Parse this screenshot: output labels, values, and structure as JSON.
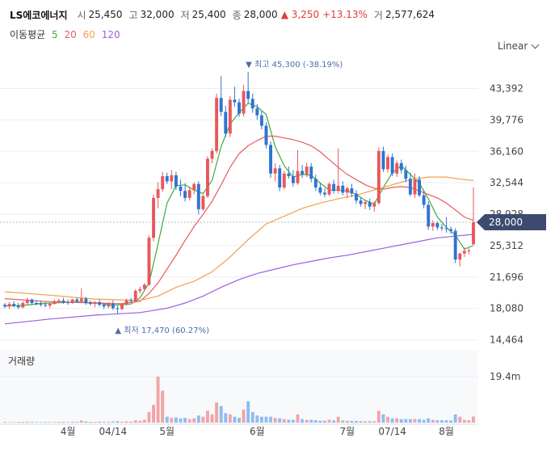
{
  "header": {
    "name": "LS에코에너지",
    "open_label": "시",
    "open": "25,450",
    "high_label": "고",
    "high": "32,000",
    "low_label": "저",
    "low": "25,400",
    "close_label": "종",
    "close": "28,000",
    "change": "▲ 3,250",
    "change_pct": "+13.13%",
    "volume_label": "거",
    "volume": "2,577,624"
  },
  "ma": {
    "label": "이동평균",
    "items": [
      {
        "period": "5",
        "color": "#3cab3c"
      },
      {
        "period": "20",
        "color": "#e85b5b"
      },
      {
        "period": "60",
        "color": "#f0a04a"
      },
      {
        "period": "120",
        "color": "#9b5fe0"
      }
    ]
  },
  "scale_selector": {
    "value": "Linear"
  },
  "volume_panel": {
    "title": "거래량",
    "tick": "19.4m"
  },
  "colors": {
    "up": "#e8575c",
    "down": "#2f74d0",
    "vol_up": "#f2a4a8",
    "vol_down": "#8dbdf0",
    "price_tag": "#3c4a70"
  },
  "chart_data": {
    "type": "candlestick",
    "y_ticks": [
      "43,392",
      "39,776",
      "36,160",
      "32,544",
      "28,928",
      "25,312",
      "21,696",
      "18,080",
      "14,464"
    ],
    "y_tick_values": [
      43392,
      39776,
      36160,
      32544,
      28928,
      25312,
      21696,
      18080,
      14464
    ],
    "ylim": [
      14464,
      43392
    ],
    "x_tick_labels": [
      "4월",
      "04/14",
      "5월",
      "6월",
      "7월",
      "07/14",
      "8월"
    ],
    "x_tick_index": [
      14,
      24,
      36,
      56,
      76,
      86,
      98
    ],
    "last_price_label": "28,000",
    "last_price": 28000,
    "high_annotation": "최고 45,300 (-38.19%)",
    "high_value": 45300,
    "high_index": 54,
    "low_annotation": "최저 17,470 (60.27%)",
    "low_value": 17470,
    "low_index": 25,
    "candles": [
      [
        18500,
        18700,
        18100,
        18300
      ],
      [
        18300,
        18800,
        18000,
        18600
      ],
      [
        18600,
        18900,
        18200,
        18400
      ],
      [
        18400,
        18700,
        18000,
        18200
      ],
      [
        18200,
        18900,
        18100,
        18700
      ],
      [
        18700,
        19300,
        18500,
        19100
      ],
      [
        19100,
        19200,
        18500,
        18700
      ],
      [
        18700,
        19000,
        18400,
        18600
      ],
      [
        18600,
        18900,
        18300,
        18500
      ],
      [
        18500,
        18800,
        18200,
        18400
      ],
      [
        18400,
        18700,
        18100,
        18600
      ],
      [
        18600,
        19100,
        18500,
        18900
      ],
      [
        18900,
        19200,
        18700,
        19000
      ],
      [
        19000,
        19300,
        18600,
        18800
      ],
      [
        18800,
        19100,
        18500,
        18700
      ],
      [
        18700,
        19200,
        18600,
        19100
      ],
      [
        19100,
        19300,
        18700,
        18900
      ],
      [
        18900,
        20400,
        18700,
        19200
      ],
      [
        19200,
        19400,
        18500,
        18700
      ],
      [
        18700,
        19000,
        18400,
        18600
      ],
      [
        18600,
        18900,
        18200,
        18800
      ],
      [
        18800,
        19100,
        18300,
        18500
      ],
      [
        18500,
        18700,
        18000,
        18300
      ],
      [
        18300,
        18800,
        18100,
        18600
      ],
      [
        18600,
        19000,
        17900,
        18100
      ],
      [
        18100,
        18400,
        17470,
        18000
      ],
      [
        18000,
        18700,
        17900,
        18600
      ],
      [
        18600,
        19200,
        18400,
        19000
      ],
      [
        19000,
        19300,
        18700,
        18900
      ],
      [
        18900,
        20300,
        18800,
        20100
      ],
      [
        20100,
        20600,
        19800,
        20300
      ],
      [
        20300,
        21000,
        20100,
        20800
      ],
      [
        20800,
        26500,
        20700,
        26200
      ],
      [
        26200,
        31200,
        25800,
        30800
      ],
      [
        30800,
        32600,
        29600,
        31800
      ],
      [
        31800,
        33800,
        31500,
        33300
      ],
      [
        33300,
        33700,
        32400,
        32700
      ],
      [
        32700,
        34000,
        31800,
        33400
      ],
      [
        33400,
        33800,
        31700,
        32100
      ],
      [
        32100,
        32900,
        31000,
        31600
      ],
      [
        31600,
        32500,
        30400,
        30800
      ],
      [
        30800,
        32100,
        30500,
        31700
      ],
      [
        31700,
        32600,
        31200,
        32400
      ],
      [
        32400,
        32700,
        28900,
        29500
      ],
      [
        29500,
        31200,
        29300,
        31000
      ],
      [
        31000,
        35600,
        30800,
        35300
      ],
      [
        35300,
        36500,
        34800,
        36200
      ],
      [
        36200,
        42800,
        35900,
        42300
      ],
      [
        42300,
        44800,
        40200,
        40700
      ],
      [
        40700,
        41400,
        37800,
        38200
      ],
      [
        38200,
        42500,
        37800,
        42100
      ],
      [
        42100,
        43600,
        41300,
        41800
      ],
      [
        41800,
        42200,
        40100,
        40500
      ],
      [
        40500,
        43800,
        40200,
        43100
      ],
      [
        43100,
        45300,
        41700,
        42200
      ],
      [
        42200,
        42800,
        40600,
        41100
      ],
      [
        41100,
        41600,
        39800,
        40300
      ],
      [
        40300,
        40800,
        38700,
        39100
      ],
      [
        39100,
        39500,
        36500,
        36900
      ],
      [
        36900,
        37300,
        33100,
        33600
      ],
      [
        33600,
        34800,
        32700,
        34200
      ],
      [
        34200,
        34600,
        31600,
        32000
      ],
      [
        32000,
        33900,
        31800,
        33600
      ],
      [
        33600,
        34400,
        33000,
        33300
      ],
      [
        33300,
        34000,
        32100,
        32500
      ],
      [
        32500,
        36300,
        32300,
        33900
      ],
      [
        33900,
        34600,
        33100,
        33500
      ],
      [
        33500,
        34800,
        33200,
        34400
      ],
      [
        34400,
        34800,
        32600,
        33000
      ],
      [
        33000,
        33500,
        31600,
        32000
      ],
      [
        32000,
        32500,
        31100,
        31400
      ],
      [
        31400,
        31900,
        30900,
        31200
      ],
      [
        31200,
        32600,
        31000,
        32400
      ],
      [
        32400,
        32900,
        31300,
        31600
      ],
      [
        31600,
        36500,
        31300,
        32200
      ],
      [
        32200,
        32700,
        31100,
        31400
      ],
      [
        31400,
        32100,
        30800,
        31900
      ],
      [
        31900,
        32400,
        30900,
        31300
      ],
      [
        31300,
        31700,
        30100,
        30500
      ],
      [
        30500,
        30900,
        29800,
        30100
      ],
      [
        30100,
        30600,
        29500,
        30300
      ],
      [
        30300,
        30700,
        29400,
        29800
      ],
      [
        29800,
        30400,
        29200,
        30200
      ],
      [
        30200,
        36600,
        30000,
        36200
      ],
      [
        36200,
        36700,
        33800,
        34100
      ],
      [
        34100,
        35800,
        33700,
        35500
      ],
      [
        35500,
        35900,
        33300,
        33600
      ],
      [
        33600,
        35100,
        33200,
        34800
      ],
      [
        34800,
        35200,
        33600,
        34000
      ],
      [
        34000,
        34500,
        32600,
        33000
      ],
      [
        33000,
        33700,
        31000,
        31200
      ],
      [
        31200,
        33600,
        30800,
        32900
      ],
      [
        32900,
        33300,
        30900,
        31100
      ],
      [
        31100,
        31600,
        29600,
        30000
      ],
      [
        30000,
        30400,
        27100,
        27500
      ],
      [
        27500,
        28200,
        27000,
        27900
      ],
      [
        27900,
        28100,
        27100,
        27400
      ],
      [
        27400,
        27800,
        27000,
        27300
      ],
      [
        27300,
        28600,
        26800,
        27200
      ],
      [
        27200,
        27500,
        26700,
        27000
      ],
      [
        27000,
        27300,
        23300,
        23700
      ],
      [
        23700,
        24500,
        22900,
        24400
      ],
      [
        24400,
        25100,
        24000,
        24700
      ],
      [
        24700,
        25000,
        24300,
        24750
      ],
      [
        25450,
        32000,
        25400,
        28000
      ]
    ],
    "volume_ylim": [
      0,
      30000000
    ],
    "volume_tick_value": 19400000,
    "volumes": [
      300000,
      250000,
      200000,
      300000,
      350000,
      400000,
      300000,
      250000,
      200000,
      300000,
      250000,
      300000,
      350000,
      300000,
      250000,
      400000,
      350000,
      900000,
      500000,
      300000,
      300000,
      400000,
      350000,
      300000,
      500000,
      600000,
      400000,
      500000,
      400000,
      1000000,
      800000,
      1200000,
      4500000,
      7500000,
      19400000,
      13500000,
      2500000,
      2000000,
      2200000,
      1800000,
      2000000,
      1500000,
      1800000,
      3000000,
      2500000,
      5000000,
      3500000,
      8500000,
      7000000,
      4000000,
      3500000,
      2500000,
      2000000,
      5500000,
      9000000,
      4500000,
      3000000,
      2500000,
      2500000,
      2500000,
      2000000,
      1800000,
      1500000,
      1200000,
      1200000,
      3500000,
      1500000,
      1200000,
      1200000,
      1000000,
      800000,
      800000,
      1200000,
      900000,
      2500000,
      900000,
      800000,
      700000,
      700000,
      600000,
      600000,
      600000,
      600000,
      5000000,
      3500000,
      2500000,
      1800000,
      1800000,
      1500000,
      1500000,
      1500000,
      1500000,
      1500000,
      1200000,
      1800000,
      1200000,
      1000000,
      1000000,
      1000000,
      900000,
      3500000,
      2500000,
      1200000,
      1000000,
      2577624
    ],
    "ma_series": [
      {
        "name": "5",
        "color": "#3cab3c",
        "values": [
          [
            0,
            18350
          ],
          [
            4,
            18420
          ],
          [
            8,
            18650
          ],
          [
            12,
            18720
          ],
          [
            16,
            18830
          ],
          [
            20,
            18720
          ],
          [
            24,
            18450
          ],
          [
            28,
            18580
          ],
          [
            30,
            19300
          ],
          [
            32,
            21000
          ],
          [
            34,
            25500
          ],
          [
            36,
            30200
          ],
          [
            38,
            32200
          ],
          [
            40,
            32300
          ],
          [
            42,
            31700
          ],
          [
            44,
            31300
          ],
          [
            46,
            32800
          ],
          [
            48,
            36700
          ],
          [
            50,
            39300
          ],
          [
            52,
            40600
          ],
          [
            54,
            41700
          ],
          [
            56,
            41300
          ],
          [
            58,
            40400
          ],
          [
            60,
            36700
          ],
          [
            62,
            34500
          ],
          [
            64,
            33200
          ],
          [
            66,
            33500
          ],
          [
            68,
            33400
          ],
          [
            70,
            32500
          ],
          [
            72,
            31700
          ],
          [
            74,
            31700
          ],
          [
            76,
            31600
          ],
          [
            78,
            31200
          ],
          [
            80,
            30500
          ],
          [
            82,
            30100
          ],
          [
            84,
            32000
          ],
          [
            86,
            33700
          ],
          [
            88,
            34500
          ],
          [
            90,
            33500
          ],
          [
            92,
            32500
          ],
          [
            94,
            30700
          ],
          [
            96,
            28600
          ],
          [
            98,
            27400
          ],
          [
            100,
            26500
          ],
          [
            102,
            24900
          ],
          [
            104,
            25300
          ]
        ]
      },
      {
        "name": "20",
        "color": "#e85b5b",
        "values": [
          [
            0,
            19200
          ],
          [
            10,
            18850
          ],
          [
            20,
            18700
          ],
          [
            26,
            18620
          ],
          [
            30,
            18900
          ],
          [
            32,
            19800
          ],
          [
            34,
            21000
          ],
          [
            36,
            22600
          ],
          [
            38,
            24200
          ],
          [
            40,
            25900
          ],
          [
            42,
            27500
          ],
          [
            44,
            28900
          ],
          [
            46,
            30400
          ],
          [
            48,
            32300
          ],
          [
            50,
            34300
          ],
          [
            52,
            35900
          ],
          [
            54,
            36800
          ],
          [
            56,
            37400
          ],
          [
            58,
            37900
          ],
          [
            60,
            37900
          ],
          [
            62,
            37700
          ],
          [
            64,
            37500
          ],
          [
            66,
            37200
          ],
          [
            68,
            36800
          ],
          [
            70,
            36100
          ],
          [
            72,
            35200
          ],
          [
            74,
            34300
          ],
          [
            76,
            33500
          ],
          [
            78,
            32900
          ],
          [
            80,
            32300
          ],
          [
            82,
            31900
          ],
          [
            84,
            31800
          ],
          [
            86,
            32000
          ],
          [
            88,
            32100
          ],
          [
            90,
            32000
          ],
          [
            92,
            31600
          ],
          [
            94,
            31200
          ],
          [
            96,
            30800
          ],
          [
            98,
            30200
          ],
          [
            100,
            29400
          ],
          [
            102,
            28600
          ],
          [
            104,
            28200
          ]
        ]
      },
      {
        "name": "60",
        "color": "#f0a04a",
        "values": [
          [
            0,
            20000
          ],
          [
            10,
            19600
          ],
          [
            20,
            19150
          ],
          [
            30,
            19000
          ],
          [
            34,
            19500
          ],
          [
            38,
            20500
          ],
          [
            42,
            21200
          ],
          [
            46,
            22300
          ],
          [
            50,
            24000
          ],
          [
            54,
            26000
          ],
          [
            58,
            27800
          ],
          [
            62,
            28700
          ],
          [
            66,
            29600
          ],
          [
            70,
            30200
          ],
          [
            74,
            30700
          ],
          [
            78,
            31100
          ],
          [
            82,
            31700
          ],
          [
            86,
            32300
          ],
          [
            90,
            32900
          ],
          [
            94,
            33200
          ],
          [
            98,
            33200
          ],
          [
            102,
            32900
          ],
          [
            104,
            32800
          ]
        ]
      },
      {
        "name": "120",
        "color": "#9b5fe0",
        "values": [
          [
            0,
            16300
          ],
          [
            10,
            16850
          ],
          [
            20,
            17300
          ],
          [
            30,
            17600
          ],
          [
            36,
            18100
          ],
          [
            40,
            18700
          ],
          [
            44,
            19500
          ],
          [
            48,
            20500
          ],
          [
            52,
            21400
          ],
          [
            56,
            22100
          ],
          [
            60,
            22600
          ],
          [
            64,
            23100
          ],
          [
            68,
            23500
          ],
          [
            72,
            23900
          ],
          [
            76,
            24200
          ],
          [
            80,
            24600
          ],
          [
            84,
            25000
          ],
          [
            88,
            25400
          ],
          [
            92,
            25800
          ],
          [
            96,
            26200
          ],
          [
            100,
            26400
          ],
          [
            104,
            26600
          ]
        ]
      }
    ]
  }
}
